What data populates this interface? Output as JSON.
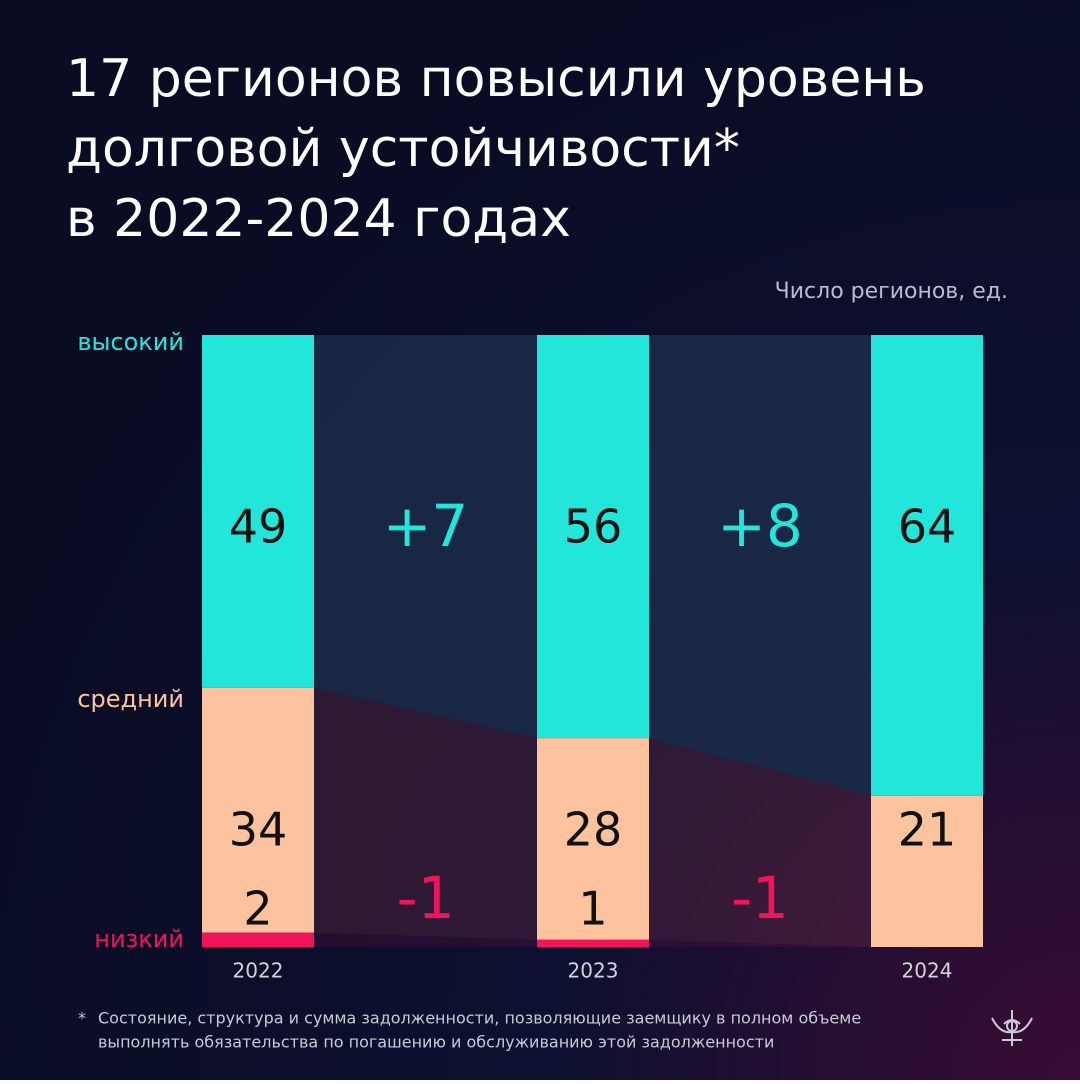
{
  "chart_data": {
    "type": "stacked-bar",
    "title": [
      "17 регионов повысили уровень",
      "долговой устойчивости*",
      "в 2022-2024 годах"
    ],
    "subtitle": "Число регионов, ед.",
    "categories": [
      "2022",
      "2023",
      "2024"
    ],
    "series": [
      {
        "name": "высокий",
        "color": "#22e6d9",
        "values": [
          49,
          56,
          64
        ]
      },
      {
        "name": "средний",
        "color": "#fcc39e",
        "values": [
          34,
          28,
          21
        ]
      },
      {
        "name": "низкий",
        "color": "#f0145a",
        "values": [
          2,
          1,
          null
        ]
      }
    ],
    "changes": [
      {
        "series": 0,
        "labels": [
          "+7",
          "+8"
        ]
      },
      {
        "series": 2,
        "labels": [
          "-1",
          "-1"
        ]
      }
    ],
    "footnote": {
      "marker": "*",
      "lines": [
        "Состояние, структура и сумма задолженности, позволяющие заемщику в полном объеме",
        "выполнять обязательства по погашению и обслуживанию этой задолженности"
      ]
    }
  }
}
